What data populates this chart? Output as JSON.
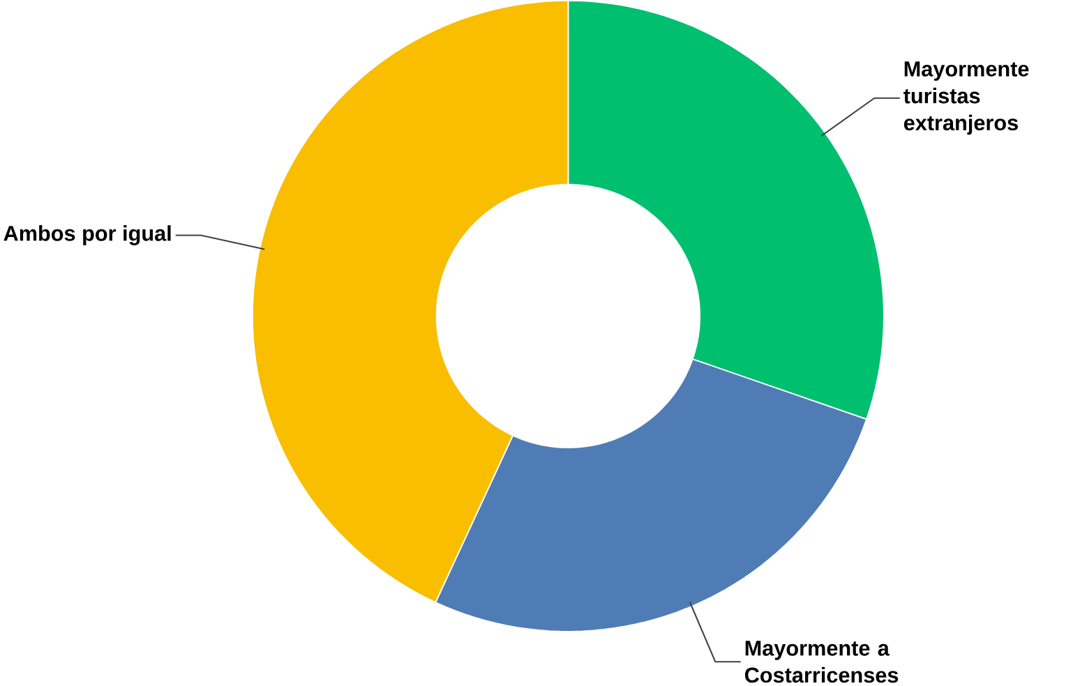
{
  "chart_data": {
    "type": "donut",
    "categories": [
      "Mayormente turistas extranjeros",
      "Mayormente a Costarricenses",
      "Ambos por igual"
    ],
    "values": [
      30.3,
      26.6,
      43.1
    ],
    "colors": [
      "#00bf6f",
      "#507cb6",
      "#f9be00"
    ]
  }
}
